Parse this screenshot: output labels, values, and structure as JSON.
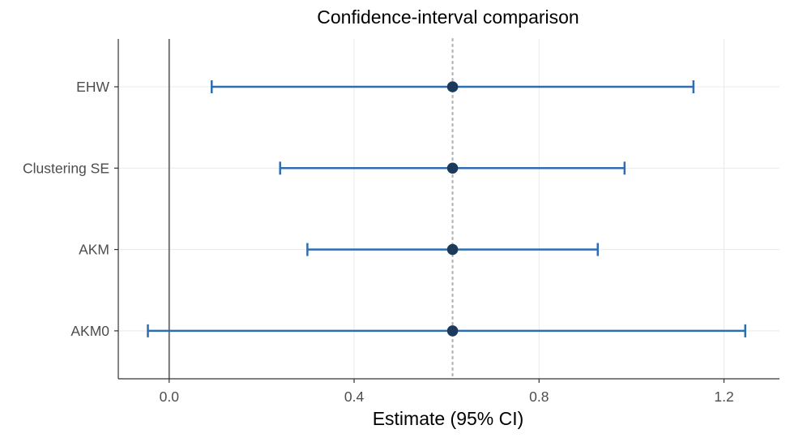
{
  "chart_data": {
    "type": "errorbar",
    "title": "Confidence-interval comparison",
    "xlabel": "Estimate (95% CI)",
    "ylabel": "",
    "xlim": [
      -0.11,
      1.32
    ],
    "x_ticks": [
      0.0,
      0.4,
      0.8,
      1.2
    ],
    "x_tick_labels": [
      "0.0",
      "0.4",
      "0.8",
      "1.2"
    ],
    "grid": true,
    "reference_lines": [
      {
        "kind": "vertical-solid",
        "x": 0.0,
        "color": "#666666"
      },
      {
        "kind": "vertical-dotted",
        "x": 0.613,
        "color": "#b3b3b3"
      }
    ],
    "categories": [
      "EHW",
      "Clustering SE",
      "AKM",
      "AKM0"
    ],
    "estimates": [
      0.613,
      0.613,
      0.613,
      0.613
    ],
    "lower": [
      0.092,
      0.24,
      0.299,
      -0.046
    ],
    "upper": [
      1.134,
      0.985,
      0.927,
      1.246
    ],
    "colors": {
      "interval": "#2f6db3",
      "point": "#1b3a5c"
    }
  }
}
